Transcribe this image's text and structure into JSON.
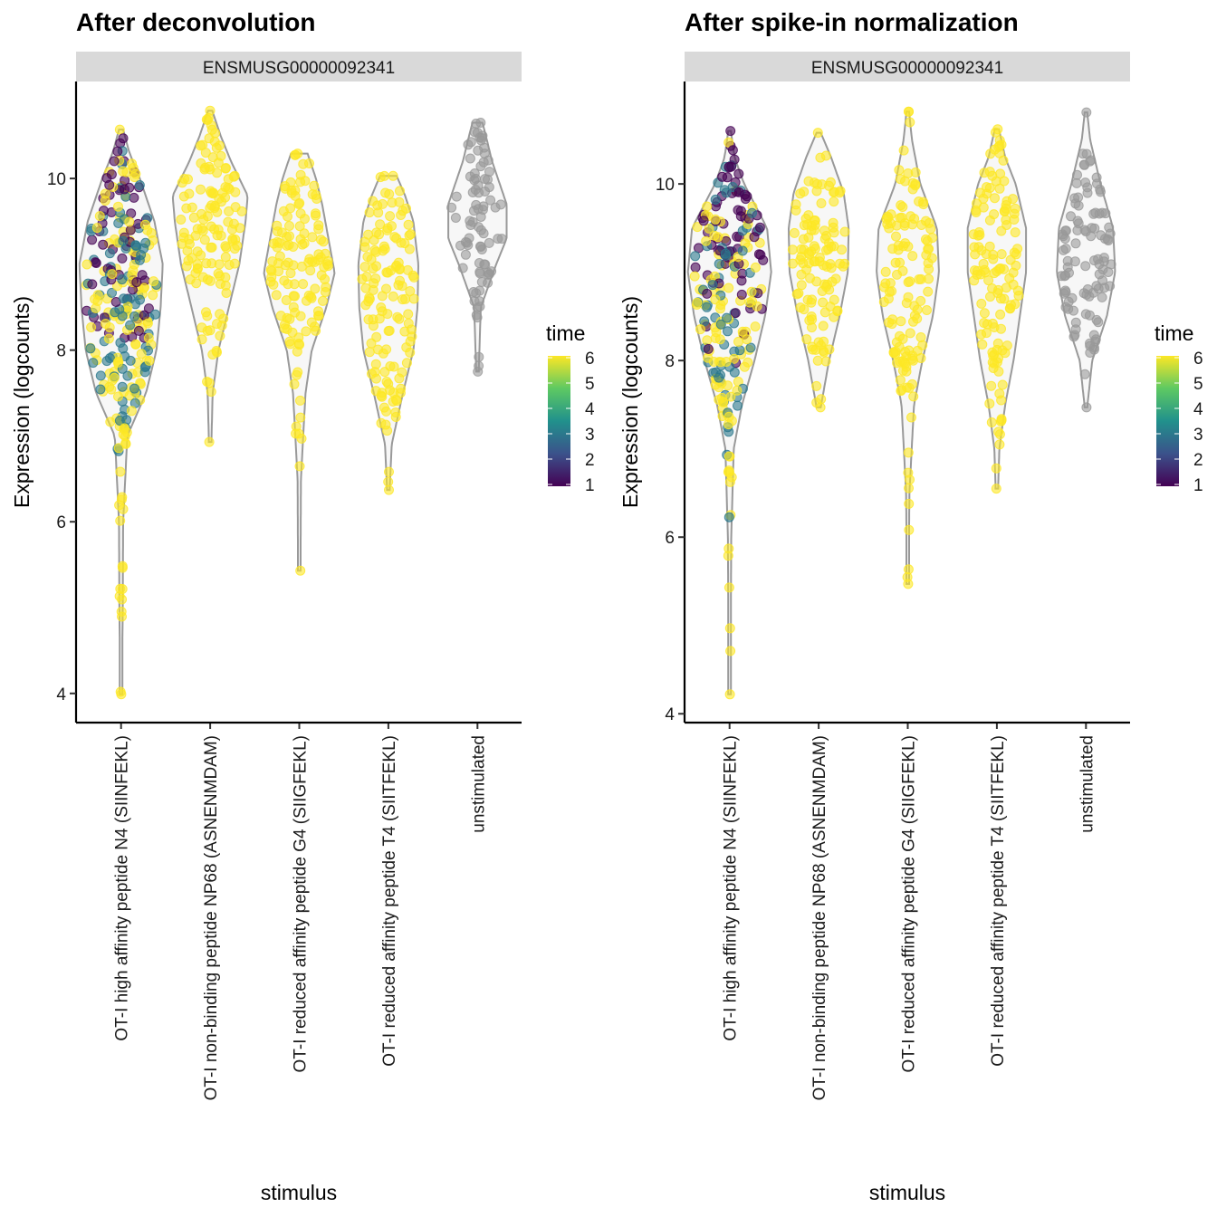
{
  "chart_data": [
    {
      "type": "violin",
      "title": "After deconvolution",
      "facet_label": "ENSMUSG00000092341",
      "xlabel": "stimulus",
      "ylabel": "Expression (logcounts)",
      "ylim": [
        3.66,
        11.13
      ],
      "yticks": [
        4,
        6,
        8,
        10
      ],
      "categories": [
        "OT-I high affinity peptide N4 (SIINFEKL)",
        "OT-I non-binding peptide NP68 (ASNENMDAM)",
        "OT-I reduced affinity peptide G4 (SIIGFEKL)",
        "OT-I reduced affinity peptide T4 (SIITFEKL)",
        "unstimulated"
      ],
      "groups": [
        {
          "min": 3.99,
          "max": 10.57,
          "times": [
            1,
            3,
            6
          ],
          "density": [
            [
              3.99,
              0.02
            ],
            [
              5,
              0.04
            ],
            [
              6,
              0.05
            ],
            [
              7,
              0.15
            ],
            [
              7.5,
              0.6
            ],
            [
              8,
              0.85
            ],
            [
              8.5,
              0.95
            ],
            [
              9,
              1
            ],
            [
              9.5,
              0.8
            ],
            [
              10,
              0.45
            ],
            [
              10.3,
              0.2
            ],
            [
              10.57,
              0.05
            ]
          ]
        },
        {
          "min": 6.93,
          "max": 10.79,
          "times": [
            6
          ],
          "density": [
            [
              6.93,
              0.03
            ],
            [
              7.5,
              0.06
            ],
            [
              8,
              0.2
            ],
            [
              8.5,
              0.45
            ],
            [
              9,
              0.7
            ],
            [
              9.5,
              0.85
            ],
            [
              9.8,
              0.9
            ],
            [
              10.2,
              0.5
            ],
            [
              10.5,
              0.25
            ],
            [
              10.79,
              0.05
            ]
          ]
        },
        {
          "min": 5.43,
          "max": 10.29,
          "times": [
            6
          ],
          "density": [
            [
              5.43,
              0.03
            ],
            [
              6.5,
              0.04
            ],
            [
              7.5,
              0.15
            ],
            [
              8,
              0.3
            ],
            [
              8.5,
              0.65
            ],
            [
              8.9,
              0.85
            ],
            [
              9.3,
              0.7
            ],
            [
              9.7,
              0.55
            ],
            [
              10,
              0.4
            ],
            [
              10.29,
              0.2
            ]
          ]
        },
        {
          "min": 6.37,
          "max": 10.03,
          "times": [
            6
          ],
          "density": [
            [
              6.37,
              0.03
            ],
            [
              6.9,
              0.08
            ],
            [
              7.5,
              0.35
            ],
            [
              8,
              0.6
            ],
            [
              8.5,
              0.7
            ],
            [
              9,
              0.72
            ],
            [
              9.5,
              0.6
            ],
            [
              9.8,
              0.4
            ],
            [
              10.03,
              0.2
            ]
          ]
        },
        {
          "min": 7.75,
          "max": 10.65,
          "times": [],
          "density": [
            [
              7.75,
              0.03
            ],
            [
              8.5,
              0.08
            ],
            [
              9,
              0.45
            ],
            [
              9.3,
              0.7
            ],
            [
              9.7,
              0.7
            ],
            [
              10.2,
              0.35
            ],
            [
              10.5,
              0.2
            ],
            [
              10.65,
              0.12
            ]
          ]
        }
      ]
    },
    {
      "type": "violin",
      "title": "After spike-in normalization",
      "facet_label": "ENSMUSG00000092341",
      "xlabel": "stimulus",
      "ylabel": "Expression (logcounts)",
      "ylim": [
        3.9,
        11.16
      ],
      "yticks": [
        4,
        6,
        8,
        10
      ],
      "categories": [
        "OT-I high affinity peptide N4 (SIINFEKL)",
        "OT-I non-binding peptide NP68 (ASNENMDAM)",
        "OT-I reduced affinity peptide G4 (SIIGFEKL)",
        "OT-I reduced affinity peptide T4 (SIITFEKL)",
        "unstimulated"
      ],
      "groups": [
        {
          "min": 4.22,
          "max": 10.6,
          "times": [
            1,
            3,
            6
          ],
          "density": [
            [
              4.22,
              0.02
            ],
            [
              5,
              0.03
            ],
            [
              6,
              0.04
            ],
            [
              7,
              0.1
            ],
            [
              7.5,
              0.3
            ],
            [
              8,
              0.6
            ],
            [
              8.5,
              0.85
            ],
            [
              9,
              1
            ],
            [
              9.5,
              0.9
            ],
            [
              10,
              0.35
            ],
            [
              10.3,
              0.12
            ],
            [
              10.6,
              0.03
            ]
          ]
        },
        {
          "min": 7.47,
          "max": 10.58,
          "times": [
            6
          ],
          "density": [
            [
              7.47,
              0.05
            ],
            [
              8,
              0.25
            ],
            [
              8.5,
              0.5
            ],
            [
              9,
              0.7
            ],
            [
              9.5,
              0.72
            ],
            [
              9.9,
              0.6
            ],
            [
              10.3,
              0.3
            ],
            [
              10.58,
              0.05
            ]
          ]
        },
        {
          "min": 5.47,
          "max": 10.82,
          "times": [
            6
          ],
          "density": [
            [
              5.47,
              0.02
            ],
            [
              6.5,
              0.04
            ],
            [
              7.5,
              0.15
            ],
            [
              8,
              0.35
            ],
            [
              8.5,
              0.6
            ],
            [
              9,
              0.75
            ],
            [
              9.5,
              0.7
            ],
            [
              10,
              0.3
            ],
            [
              10.5,
              0.1
            ],
            [
              10.82,
              0.03
            ]
          ]
        },
        {
          "min": 6.55,
          "max": 10.62,
          "times": [
            6
          ],
          "density": [
            [
              6.55,
              0.03
            ],
            [
              7,
              0.06
            ],
            [
              7.5,
              0.2
            ],
            [
              8,
              0.4
            ],
            [
              8.5,
              0.55
            ],
            [
              9,
              0.7
            ],
            [
              9.5,
              0.7
            ],
            [
              10,
              0.45
            ],
            [
              10.3,
              0.2
            ],
            [
              10.62,
              0.05
            ]
          ]
        },
        {
          "min": 7.47,
          "max": 10.81,
          "times": [],
          "density": [
            [
              7.47,
              0.03
            ],
            [
              8,
              0.15
            ],
            [
              8.5,
              0.5
            ],
            [
              9,
              0.7
            ],
            [
              9.5,
              0.65
            ],
            [
              10,
              0.35
            ],
            [
              10.5,
              0.1
            ],
            [
              10.81,
              0.03
            ]
          ]
        }
      ]
    }
  ],
  "legend": {
    "title": "time",
    "ticks": [
      "6",
      "5",
      "4",
      "3",
      "2",
      "1"
    ],
    "range": [
      1,
      6
    ],
    "palette": [
      "#440154",
      "#3b528b",
      "#21918c",
      "#5ec962",
      "#fde725"
    ],
    "na_color": "#999999"
  },
  "colors": {
    "violin_outline": "#999999",
    "violin_fill": "#f7f7f7",
    "strip_fill": "#d9d9d9"
  }
}
